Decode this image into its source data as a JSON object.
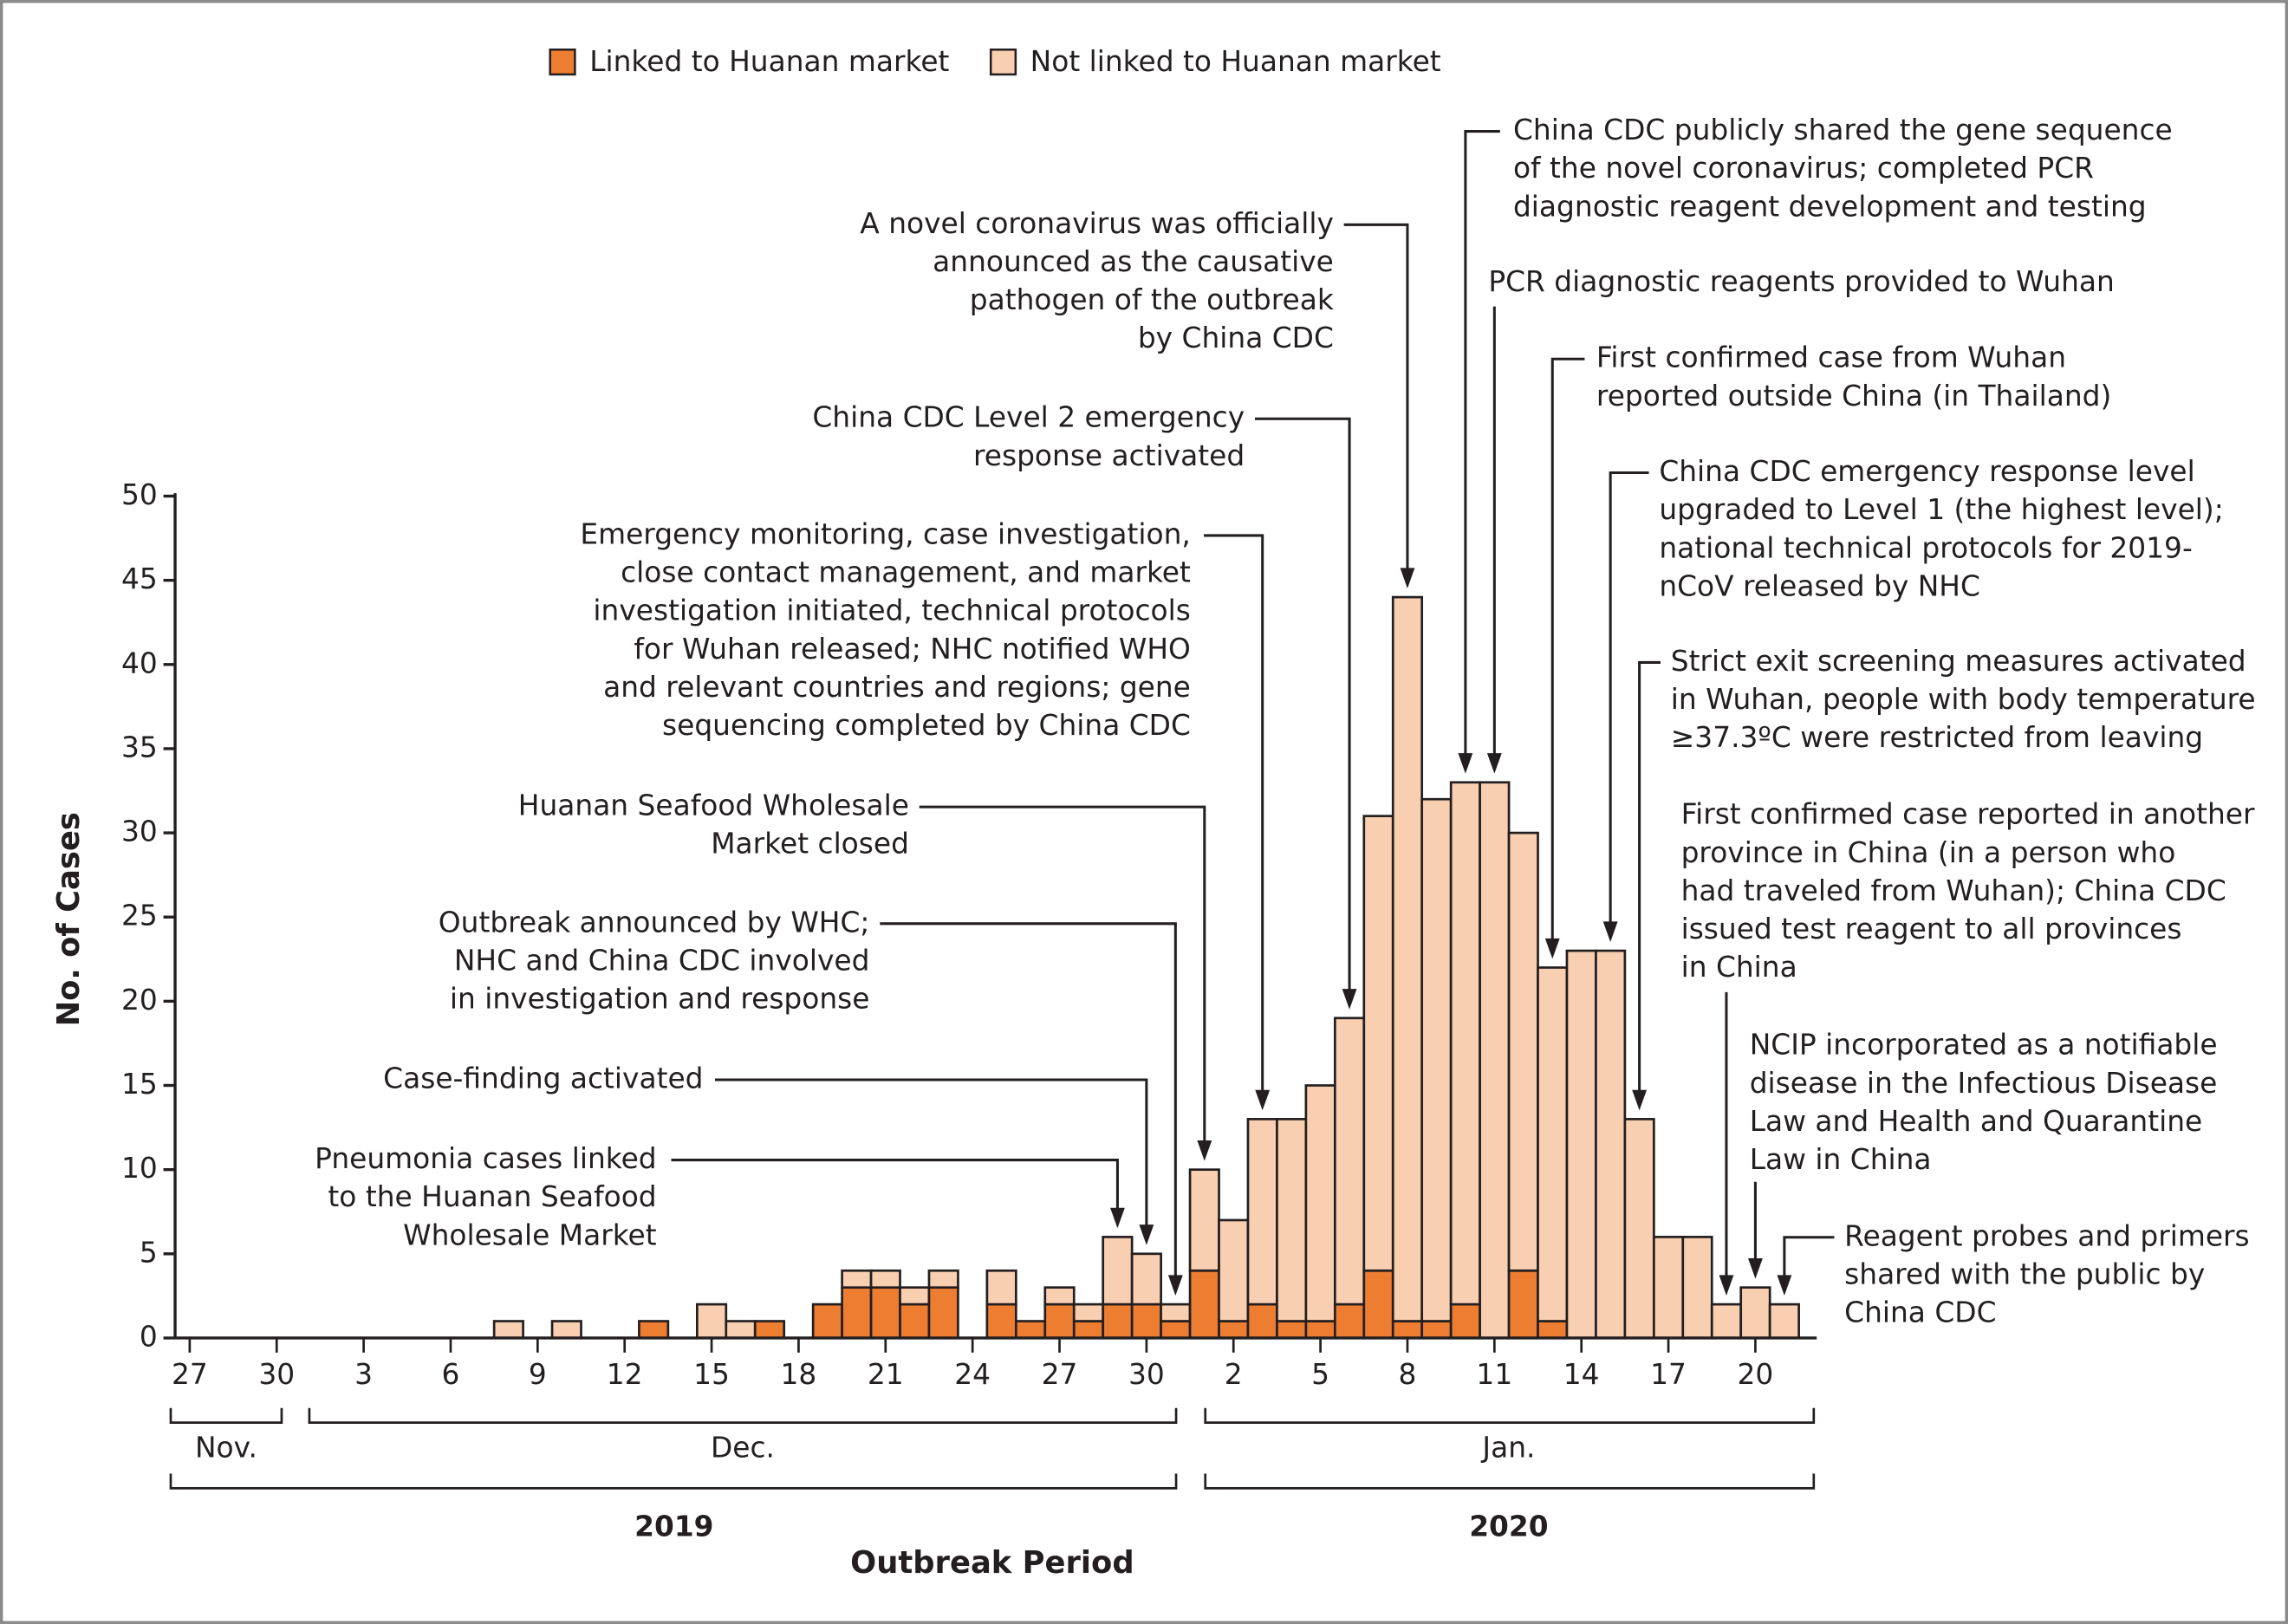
{
  "chart_data": {
    "type": "bar",
    "stacked": true,
    "ylabel": "No. of Cases",
    "xlabel": "Outbreak Period",
    "ylim": [
      0,
      50
    ],
    "yticks": [
      0,
      5,
      10,
      15,
      20,
      25,
      30,
      35,
      40,
      45,
      50
    ],
    "grid": false,
    "legend_placement": "top-center",
    "colors": {
      "linked": "#ED7D31",
      "not_linked": "#F9CFB1",
      "outline": "#231f20"
    },
    "categories": [
      "Nov 27",
      "Nov 28",
      "Nov 29",
      "Nov 30",
      "Dec 1",
      "Dec 2",
      "Dec 3",
      "Dec 4",
      "Dec 5",
      "Dec 6",
      "Dec 7",
      "Dec 8",
      "Dec 9",
      "Dec 10",
      "Dec 11",
      "Dec 12",
      "Dec 13",
      "Dec 14",
      "Dec 15",
      "Dec 16",
      "Dec 17",
      "Dec 18",
      "Dec 19",
      "Dec 20",
      "Dec 21",
      "Dec 22",
      "Dec 23",
      "Dec 24",
      "Dec 25",
      "Dec 26",
      "Dec 27",
      "Dec 28",
      "Dec 29",
      "Dec 30",
      "Dec 31",
      "Jan 1",
      "Jan 2",
      "Jan 3",
      "Jan 4",
      "Jan 5",
      "Jan 6",
      "Jan 7",
      "Jan 8",
      "Jan 9",
      "Jan 10",
      "Jan 11",
      "Jan 12",
      "Jan 13",
      "Jan 14",
      "Jan 15",
      "Jan 16",
      "Jan 17",
      "Jan 18",
      "Jan 19",
      "Jan 20",
      "Jan 21"
    ],
    "series": [
      {
        "name": "Linked to Huanan market",
        "values": [
          0,
          0,
          0,
          0,
          0,
          0,
          0,
          0,
          0,
          0,
          0,
          0,
          0,
          0,
          0,
          0,
          1,
          0,
          0,
          0,
          1,
          0,
          2,
          3,
          3,
          2,
          3,
          0,
          2,
          1,
          2,
          1,
          2,
          2,
          1,
          4,
          1,
          2,
          1,
          1,
          2,
          4,
          1,
          1,
          2,
          0,
          4,
          1,
          0,
          0,
          0,
          0,
          0,
          0,
          0,
          0
        ]
      },
      {
        "name": "Not linked to Huanan market",
        "values": [
          0,
          0,
          0,
          0,
          0,
          0,
          0,
          0,
          0,
          0,
          0,
          1,
          0,
          1,
          0,
          0,
          0,
          0,
          2,
          1,
          0,
          0,
          0,
          1,
          1,
          1,
          1,
          0,
          2,
          0,
          1,
          1,
          4,
          3,
          1,
          6,
          6,
          11,
          12,
          14,
          17,
          27,
          43,
          31,
          31,
          33,
          26,
          21,
          23,
          23,
          13,
          6,
          6,
          2,
          3,
          2
        ]
      }
    ],
    "x_tick_labels": [
      "27",
      "30",
      "3",
      "6",
      "9",
      "12",
      "15",
      "18",
      "21",
      "24",
      "27",
      "30",
      "2",
      "5",
      "8",
      "11",
      "14",
      "17",
      "20"
    ],
    "months": [
      "Nov.",
      "Dec.",
      "Jan."
    ],
    "years": [
      "2019",
      "2020"
    ],
    "annotations": [
      {
        "date": "Dec 29",
        "lines": [
          "Pneumonia cases linked",
          "to the Huanan Seafood",
          "Wholesale Market"
        ]
      },
      {
        "date": "Dec 30",
        "lines": [
          "Case-finding activated"
        ]
      },
      {
        "date": "Dec 31",
        "lines": [
          "Outbreak announced by WHC;",
          "NHC and China CDC involved",
          "in investigation and response"
        ]
      },
      {
        "date": "Jan 1",
        "lines": [
          "Huanan Seafood Wholesale",
          "Market closed"
        ]
      },
      {
        "date": "Jan 3",
        "lines": [
          "Emergency monitoring, case investigation,",
          "close contact management, and market",
          "investigation initiated, technical protocols",
          "for Wuhan released; NHC notified WHO",
          "and relevant countries and regions; gene",
          "sequencing completed by China CDC"
        ]
      },
      {
        "date": "Jan 6",
        "lines": [
          "China CDC Level 2 emergency",
          "response activated"
        ]
      },
      {
        "date": "Jan 8",
        "lines": [
          "A novel coronavirus was officially",
          "announced as the causative",
          "pathogen of the outbreak",
          "by China CDC"
        ]
      },
      {
        "date": "Jan 10",
        "lines": [
          "China CDC publicly shared the gene sequence",
          "of the novel coronavirus; completed PCR",
          "diagnostic reagent development and testing"
        ]
      },
      {
        "date": "Jan 11",
        "lines": [
          "PCR diagnostic reagents provided to Wuhan"
        ]
      },
      {
        "date": "Jan 13",
        "lines": [
          "First confirmed case from Wuhan",
          "reported outside China (in Thailand)"
        ]
      },
      {
        "date": "Jan 15",
        "lines": [
          "China CDC emergency response level",
          "upgraded to Level 1 (the highest level);",
          "national technical protocols for 2019-",
          "nCoV released by NHC"
        ]
      },
      {
        "date": "Jan 16",
        "lines": [
          "Strict exit screening measures activated",
          "in Wuhan, people with body temperature",
          "≥37.3ºC were restricted from leaving"
        ]
      },
      {
        "date": "Jan 19",
        "lines": [
          "First confirmed case reported in another",
          "province in China (in a person who",
          "had traveled from Wuhan); China CDC",
          "issued test reagent to all provinces",
          "in China"
        ]
      },
      {
        "date": "Jan 20",
        "lines": [
          "NCIP incorporated as a notifiable",
          "disease in the Infectious Disease",
          "Law and Health and Quarantine",
          "Law in China"
        ]
      },
      {
        "date": "Jan 21",
        "lines": [
          "Reagent probes and primers",
          "shared with the public by",
          "China CDC"
        ]
      }
    ]
  }
}
